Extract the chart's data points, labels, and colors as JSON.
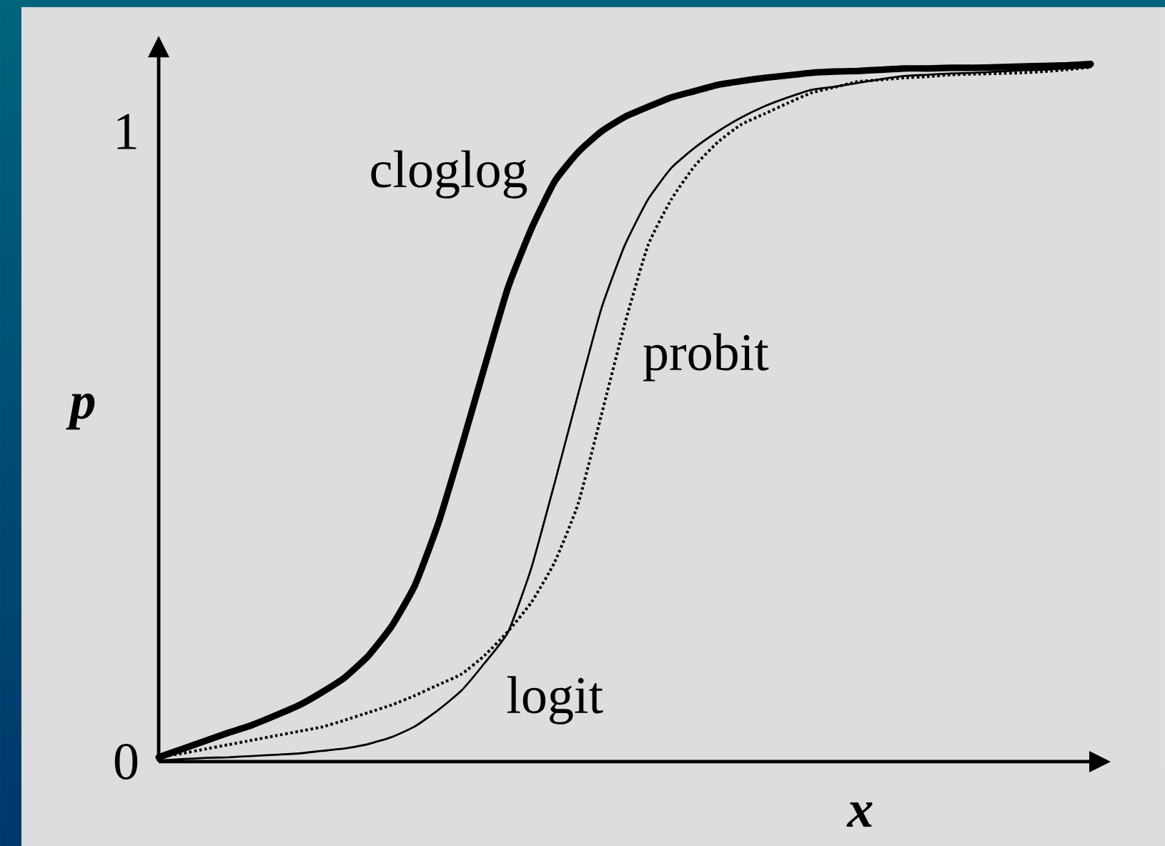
{
  "chart_data": {
    "type": "line",
    "xlabel": "x",
    "ylabel": "p",
    "categories": [
      null,
      null,
      null,
      null,
      null,
      null,
      null,
      null,
      null,
      null,
      null,
      null,
      null,
      null,
      null,
      null,
      null,
      null,
      null,
      null,
      null,
      null,
      null,
      null,
      null,
      null,
      null,
      null,
      null,
      null,
      null,
      null,
      null,
      null,
      null,
      null,
      null,
      null,
      null,
      null,
      null
    ],
    "ylim": [
      0,
      1.12
    ],
    "yticks": [
      0,
      1
    ],
    "tick_labels": "y",
    "series": [
      {
        "name": "cloglog",
        "color": "#000000",
        "line_style": "solid",
        "values": [
          0.007,
          0.02,
          0.033,
          0.046,
          0.058,
          0.073,
          0.089,
          0.11,
          0.134,
          0.168,
          0.215,
          0.28,
          0.378,
          0.5,
          0.628,
          0.753,
          0.846,
          0.921,
          0.967,
          1.0,
          1.023,
          1.039,
          1.054,
          1.064,
          1.074,
          1.08,
          1.085,
          1.089,
          1.093,
          1.095,
          1.096,
          1.098,
          1.1,
          1.1,
          1.101,
          1.101,
          1.102,
          1.103,
          1.104,
          1.105,
          1.107
        ]
      },
      {
        "name": "logit",
        "color": "#000000",
        "line_style": "solid",
        "values": [
          0.002,
          0.004,
          0.006,
          0.007,
          0.009,
          0.011,
          0.013,
          0.017,
          0.021,
          0.028,
          0.039,
          0.056,
          0.082,
          0.113,
          0.157,
          0.206,
          0.308,
          0.443,
          0.583,
          0.719,
          0.819,
          0.892,
          0.942,
          0.974,
          1.0,
          1.022,
          1.04,
          1.054,
          1.066,
          1.071,
          1.077,
          1.083,
          1.088,
          1.09,
          1.092,
          1.093,
          1.095,
          1.097,
          1.098,
          1.1,
          1.102
        ]
      },
      {
        "name": "probit",
        "color": "#000000",
        "line_style": "dotted",
        "values": [
          0.007,
          0.013,
          0.02,
          0.027,
          0.034,
          0.041,
          0.048,
          0.055,
          0.066,
          0.078,
          0.09,
          0.105,
          0.122,
          0.139,
          0.169,
          0.207,
          0.253,
          0.317,
          0.409,
          0.55,
          0.694,
          0.819,
          0.892,
          0.945,
          0.983,
          1.011,
          1.028,
          1.045,
          1.061,
          1.07,
          1.079,
          1.082,
          1.085,
          1.087,
          1.09,
          1.091,
          1.092,
          1.093,
          1.095,
          1.098,
          1.102
        ]
      }
    ]
  }
}
